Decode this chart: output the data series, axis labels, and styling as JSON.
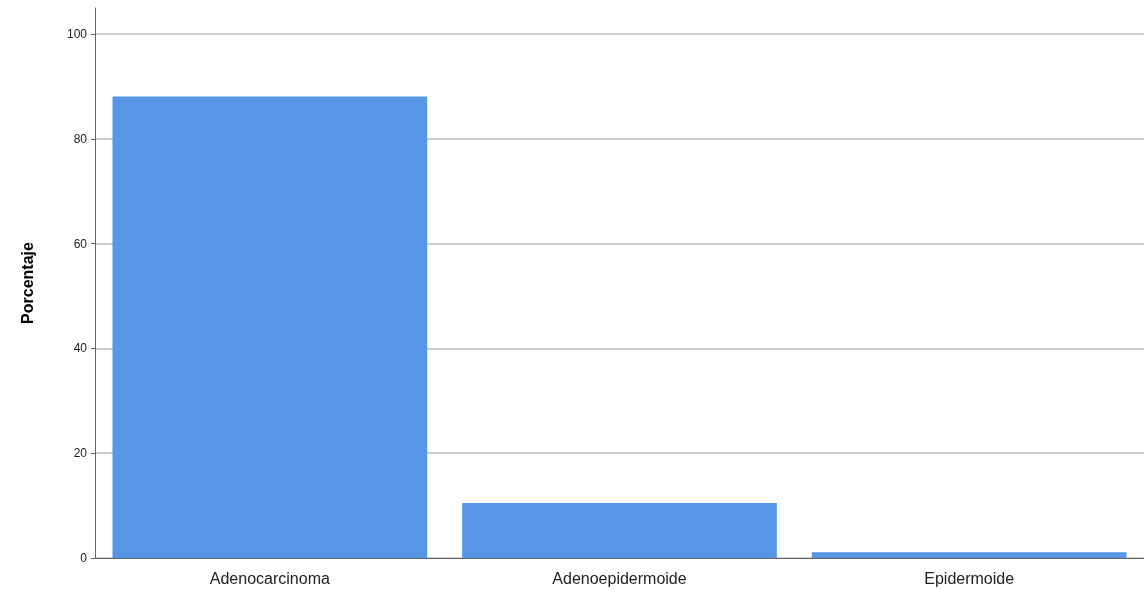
{
  "chart_data": {
    "type": "bar",
    "ylabel": "Porcentaje",
    "categories": [
      "Adenocarcinoma",
      "Adenoepidermoide",
      "Epidermoide"
    ],
    "values": [
      88.1,
      10.5,
      1.1
    ],
    "color": "#5596e6",
    "ylim": [
      0,
      105
    ],
    "yticks": [
      0,
      20,
      40,
      60,
      80,
      100
    ],
    "grid": "y"
  }
}
